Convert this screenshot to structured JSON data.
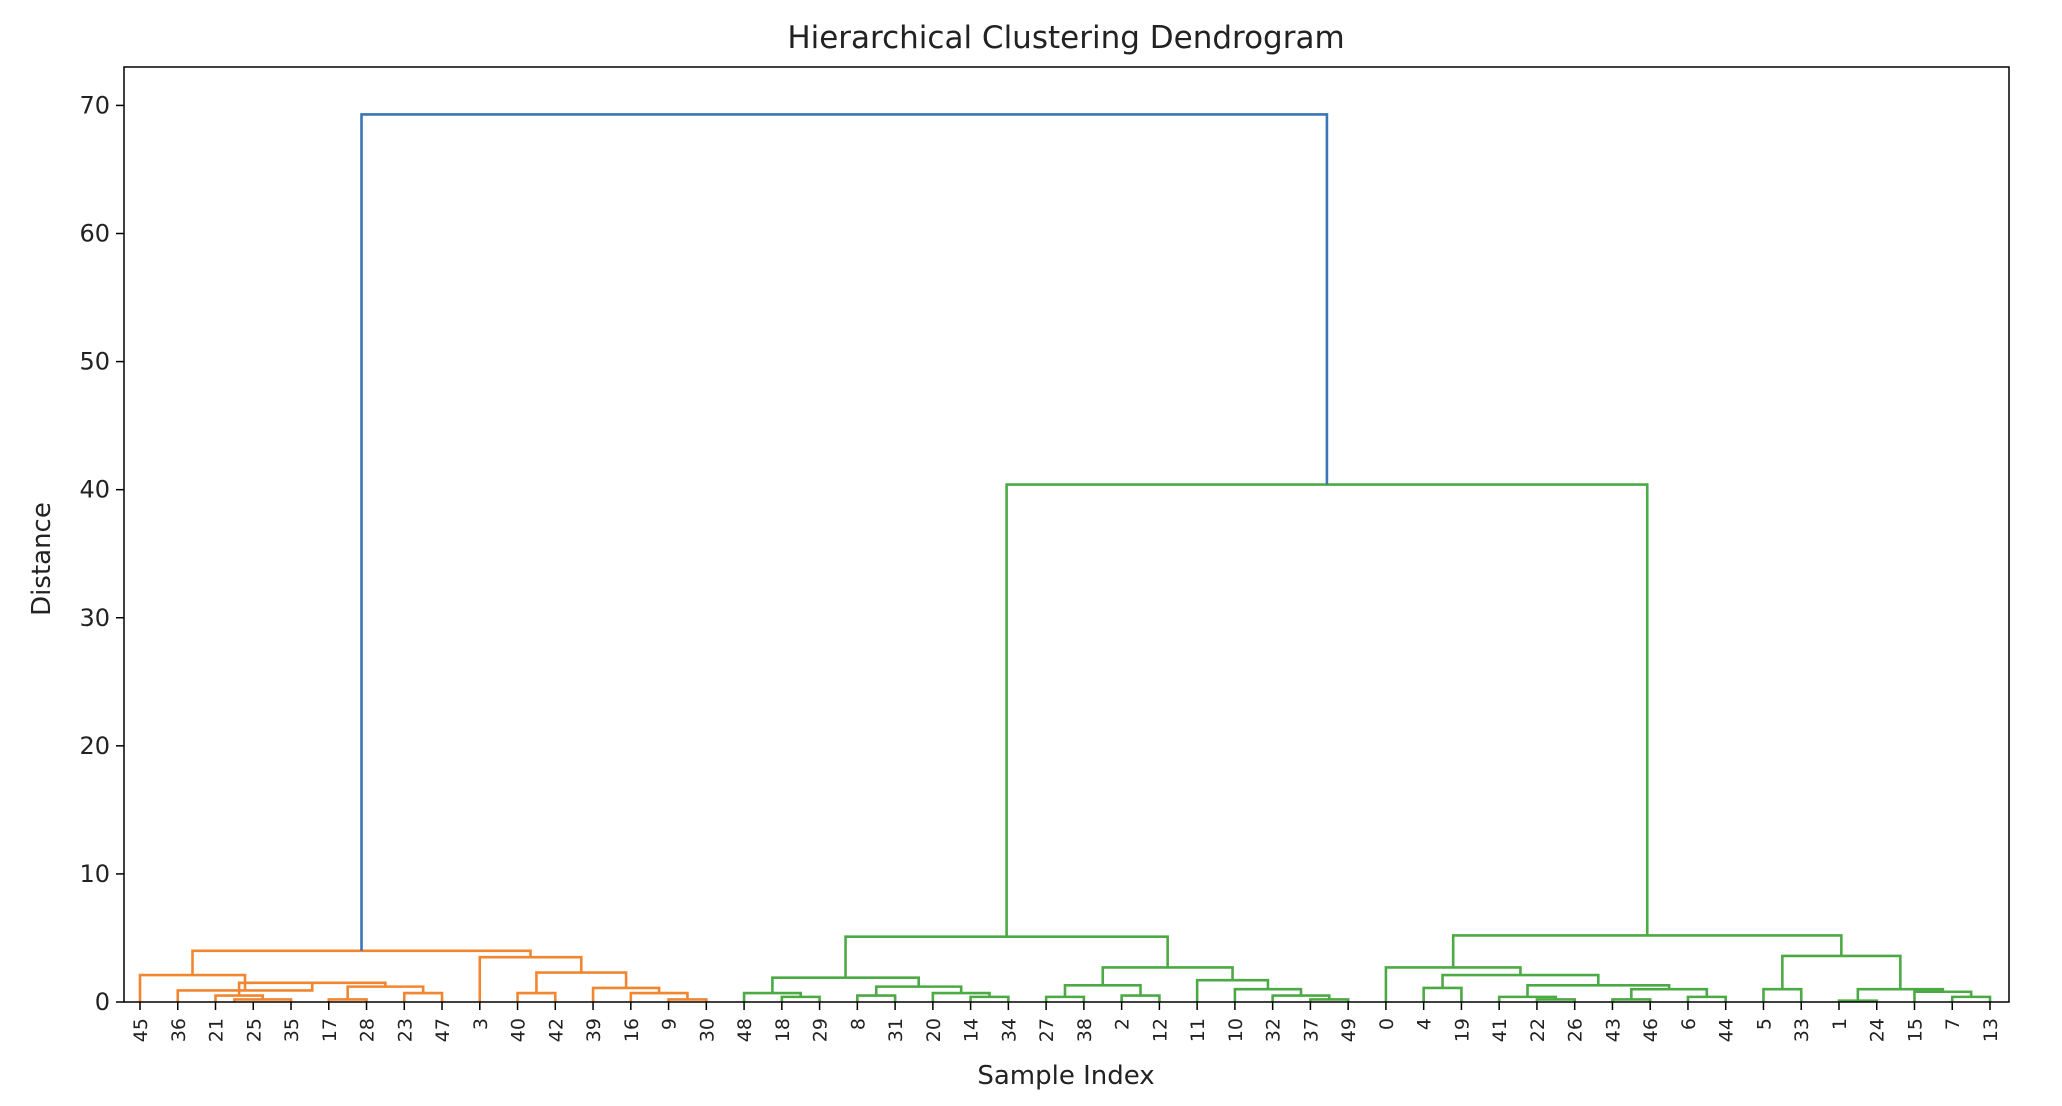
{
  "chart_data": {
    "type": "dendrogram",
    "title": "Hierarchical Clustering Dendrogram",
    "xlabel": "Sample Index",
    "ylabel": "Distance",
    "ylim": [
      0,
      73
    ],
    "yticks": [
      0,
      10,
      20,
      30,
      40,
      50,
      60,
      70
    ],
    "grid": false,
    "legend": "none",
    "colors": {
      "cluster_a": "#f28630",
      "cluster_b": "#4caa44",
      "root": "#3b75b4",
      "text": "#222222",
      "frame": "#000000"
    },
    "leaves": [
      "45",
      "36",
      "21",
      "25",
      "35",
      "17",
      "28",
      "23",
      "47",
      "3",
      "40",
      "42",
      "39",
      "16",
      "9",
      "30",
      "48",
      "18",
      "29",
      "8",
      "31",
      "20",
      "14",
      "34",
      "27",
      "38",
      "2",
      "12",
      "11",
      "10",
      "32",
      "37",
      "49",
      "0",
      "4",
      "19",
      "41",
      "22",
      "26",
      "43",
      "46",
      "6",
      "44",
      "5",
      "33",
      "1",
      "24",
      "15",
      "7",
      "13"
    ],
    "links": [
      {
        "left": 2.5,
        "right": 4,
        "height": 0.2,
        "color": "cluster_a"
      },
      {
        "left": 2,
        "right": 3.25,
        "height": 0.5,
        "color": "cluster_a"
      },
      {
        "left": 5,
        "right": 6,
        "height": 0.2,
        "color": "cluster_a"
      },
      {
        "left": 7,
        "right": 8,
        "height": 0.7,
        "color": "cluster_a"
      },
      {
        "left": 5.5,
        "right": 7.5,
        "height": 1.2,
        "color": "cluster_a"
      },
      {
        "left": 2.625,
        "right": 6.5,
        "height": 1.5,
        "color": "cluster_a"
      },
      {
        "left": 1,
        "right": 4.5625,
        "height": 0.9,
        "color": "cluster_a"
      },
      {
        "left": 0,
        "right": 2.78125,
        "height": 2.1,
        "color": "cluster_a"
      },
      {
        "left": 10,
        "right": 11,
        "height": 0.7,
        "color": "cluster_a"
      },
      {
        "left": 14,
        "right": 15,
        "height": 0.2,
        "color": "cluster_a"
      },
      {
        "left": 13,
        "right": 14.5,
        "height": 0.7,
        "color": "cluster_a"
      },
      {
        "left": 12,
        "right": 13.75,
        "height": 1.1,
        "color": "cluster_a"
      },
      {
        "left": 10.5,
        "right": 12.875,
        "height": 2.3,
        "color": "cluster_a"
      },
      {
        "left": 9,
        "right": 11.6875,
        "height": 3.5,
        "color": "cluster_a"
      },
      {
        "left": 1.390625,
        "right": 10.34375,
        "height": 4.0,
        "color": "cluster_a"
      },
      {
        "left": 17,
        "right": 18,
        "height": 0.4,
        "color": "cluster_b"
      },
      {
        "left": 16,
        "right": 17.5,
        "height": 0.7,
        "color": "cluster_b"
      },
      {
        "left": 19,
        "right": 20,
        "height": 0.5,
        "color": "cluster_b"
      },
      {
        "left": 22,
        "right": 23,
        "height": 0.4,
        "color": "cluster_b"
      },
      {
        "left": 21,
        "right": 22.5,
        "height": 0.7,
        "color": "cluster_b"
      },
      {
        "left": 19.5,
        "right": 21.75,
        "height": 1.2,
        "color": "cluster_b"
      },
      {
        "left": 16.75,
        "right": 20.625,
        "height": 1.9,
        "color": "cluster_b"
      },
      {
        "left": 24,
        "right": 25,
        "height": 0.4,
        "color": "cluster_b"
      },
      {
        "left": 26,
        "right": 27,
        "height": 0.5,
        "color": "cluster_b"
      },
      {
        "left": 24.5,
        "right": 26.5,
        "height": 1.3,
        "color": "cluster_b"
      },
      {
        "left": 31,
        "right": 32,
        "height": 0.2,
        "color": "cluster_b"
      },
      {
        "left": 30,
        "right": 31.5,
        "height": 0.5,
        "color": "cluster_b"
      },
      {
        "left": 29,
        "right": 30.75,
        "height": 1.0,
        "color": "cluster_b"
      },
      {
        "left": 28,
        "right": 29.875,
        "height": 1.7,
        "color": "cluster_b"
      },
      {
        "left": 25.5,
        "right": 28.9375,
        "height": 2.7,
        "color": "cluster_b"
      },
      {
        "left": 18.6875,
        "right": 27.21875,
        "height": 5.1,
        "color": "cluster_b"
      },
      {
        "left": 34,
        "right": 35,
        "height": 1.1,
        "color": "cluster_b"
      },
      {
        "left": 37,
        "right": 38,
        "height": 0.2,
        "color": "cluster_b"
      },
      {
        "left": 36,
        "right": 37.5,
        "height": 0.4,
        "color": "cluster_b"
      },
      {
        "left": 39,
        "right": 40,
        "height": 0.2,
        "color": "cluster_b"
      },
      {
        "left": 41,
        "right": 42,
        "height": 0.4,
        "color": "cluster_b"
      },
      {
        "left": 39.5,
        "right": 41.5,
        "height": 1.0,
        "color": "cluster_b"
      },
      {
        "left": 36.75,
        "right": 40.5,
        "height": 1.3,
        "color": "cluster_b"
      },
      {
        "left": 34.5,
        "right": 38.625,
        "height": 2.1,
        "color": "cluster_b"
      },
      {
        "left": 33,
        "right": 36.5625,
        "height": 2.7,
        "color": "cluster_b"
      },
      {
        "left": 43,
        "right": 44,
        "height": 1.0,
        "color": "cluster_b"
      },
      {
        "left": 45,
        "right": 46,
        "height": 0.1,
        "color": "cluster_b"
      },
      {
        "left": 48,
        "right": 49,
        "height": 0.4,
        "color": "cluster_b"
      },
      {
        "left": 47,
        "right": 48.5,
        "height": 0.8,
        "color": "cluster_b"
      },
      {
        "left": 45.5,
        "right": 47.75,
        "height": 1.0,
        "color": "cluster_b"
      },
      {
        "left": 43.5,
        "right": 46.625,
        "height": 3.6,
        "color": "cluster_b"
      },
      {
        "left": 34.78125,
        "right": 45.0625,
        "height": 5.2,
        "color": "cluster_b"
      },
      {
        "left": 22.953125,
        "right": 39.921875,
        "height": 40.4,
        "color": "cluster_b"
      },
      {
        "left": 5.8671875,
        "right": 31.4375,
        "height": 69.3,
        "color": "root"
      }
    ]
  }
}
